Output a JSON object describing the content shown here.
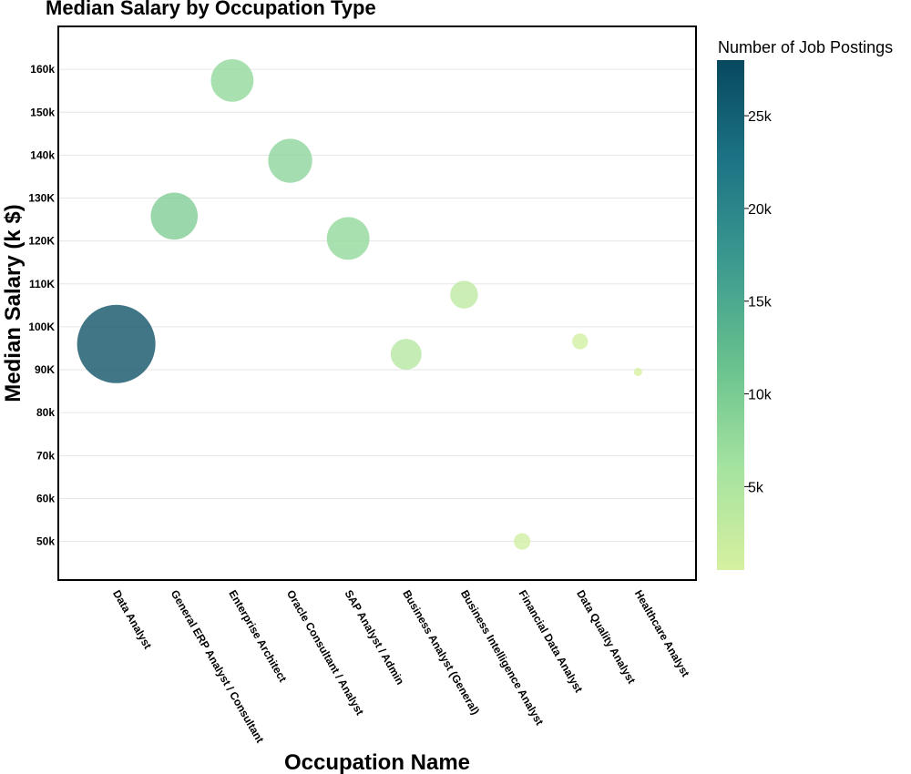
{
  "chart_data": {
    "type": "scatter",
    "title": "Median Salary by Occupation Type",
    "xlabel": "Occupation Name",
    "ylabel": "Median Salary (k $)",
    "ylim": [
      41,
      170
    ],
    "y_ticks": [
      50,
      60,
      70,
      80,
      90,
      100,
      110,
      120,
      130,
      140,
      150,
      160
    ],
    "y_tick_labels": [
      "50k",
      "60k",
      "70k",
      "80k",
      "90K",
      "100K",
      "110K",
      "120K",
      "130K",
      "140k",
      "150k",
      "160k"
    ],
    "grid": true,
    "categories": [
      "Data Analyst",
      "General ERP Analyst / Consultant",
      "Enterprise Architect",
      "Oracle Consultant / Analyst",
      "SAP Analyst / Admin",
      "Business Analyst (General)",
      "Business Intelligence Analyst",
      "Financial Data Analyst",
      "Data Quality Analyst",
      "Healthcare Analyst"
    ],
    "values": [
      96,
      125.8,
      157.4,
      138.7,
      120.6,
      93.6,
      107.5,
      50,
      96.6,
      89.5
    ],
    "job_postings": [
      27000,
      9700,
      8000,
      8500,
      8000,
      4200,
      3400,
      1200,
      1100,
      300
    ],
    "colorbar": {
      "title": "Number of Job Postings",
      "range": [
        500,
        28000
      ],
      "ticks": [
        5000,
        10000,
        15000,
        20000,
        25000
      ],
      "tick_labels": [
        "5k",
        "10k",
        "15k",
        "20k",
        "25k"
      ],
      "colors": [
        "#d6f0a0",
        "#a5e3a0",
        "#69c28e",
        "#3c9a8f",
        "#1d7485",
        "#07485e"
      ]
    }
  }
}
